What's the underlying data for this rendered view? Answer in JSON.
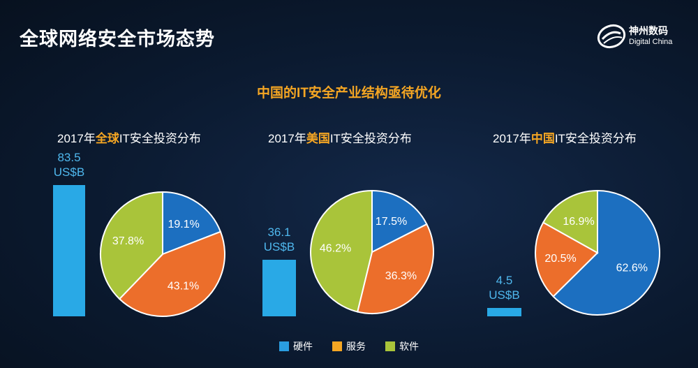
{
  "page": {
    "title": "全球网络安全市场态势",
    "subtitle": "中国的IT安全产业结构亟待优化"
  },
  "logo": {
    "name_cn": "神州数码",
    "name_en": "Digital China"
  },
  "colors": {
    "hardware": "#1c6fc0",
    "service": "#ec6e2b",
    "software": "#a9c43a",
    "bar": "#29a9e6",
    "accent": "#f5a623"
  },
  "chart_data": [
    {
      "type": "pie",
      "title_prefix": "2017年",
      "title_highlight": "全球",
      "title_suffix": "IT安全投资分布",
      "total": 83.5,
      "total_label": "83.5",
      "unit": "US$B",
      "series": [
        {
          "name": "硬件",
          "value": 19.1,
          "label": "19.1%"
        },
        {
          "name": "服务",
          "value": 43.1,
          "label": "43.1%"
        },
        {
          "name": "软件",
          "value": 37.8,
          "label": "37.8%"
        }
      ]
    },
    {
      "type": "pie",
      "title_prefix": "2017年",
      "title_highlight": "美国",
      "title_suffix": "IT安全投资分布",
      "total": 36.1,
      "total_label": "36.1",
      "unit": "US$B",
      "series": [
        {
          "name": "硬件",
          "value": 17.5,
          "label": "17.5%"
        },
        {
          "name": "服务",
          "value": 36.3,
          "label": "36.3%"
        },
        {
          "name": "软件",
          "value": 46.2,
          "label": "46.2%"
        }
      ]
    },
    {
      "type": "pie",
      "title_prefix": "2017年",
      "title_highlight": "中国",
      "title_suffix": "IT安全投资分布",
      "total": 4.5,
      "total_label": "4.5",
      "unit": "US$B",
      "series": [
        {
          "name": "硬件",
          "value": 62.6,
          "label": "62.6%"
        },
        {
          "name": "服务",
          "value": 20.5,
          "label": "20.5%"
        },
        {
          "name": "软件",
          "value": 16.9,
          "label": "16.9%"
        }
      ]
    }
  ],
  "legend": [
    {
      "label": "硬件",
      "color": "#2a9de0"
    },
    {
      "label": "服务",
      "color": "#f5a623"
    },
    {
      "label": "软件",
      "color": "#a9c43a"
    }
  ]
}
